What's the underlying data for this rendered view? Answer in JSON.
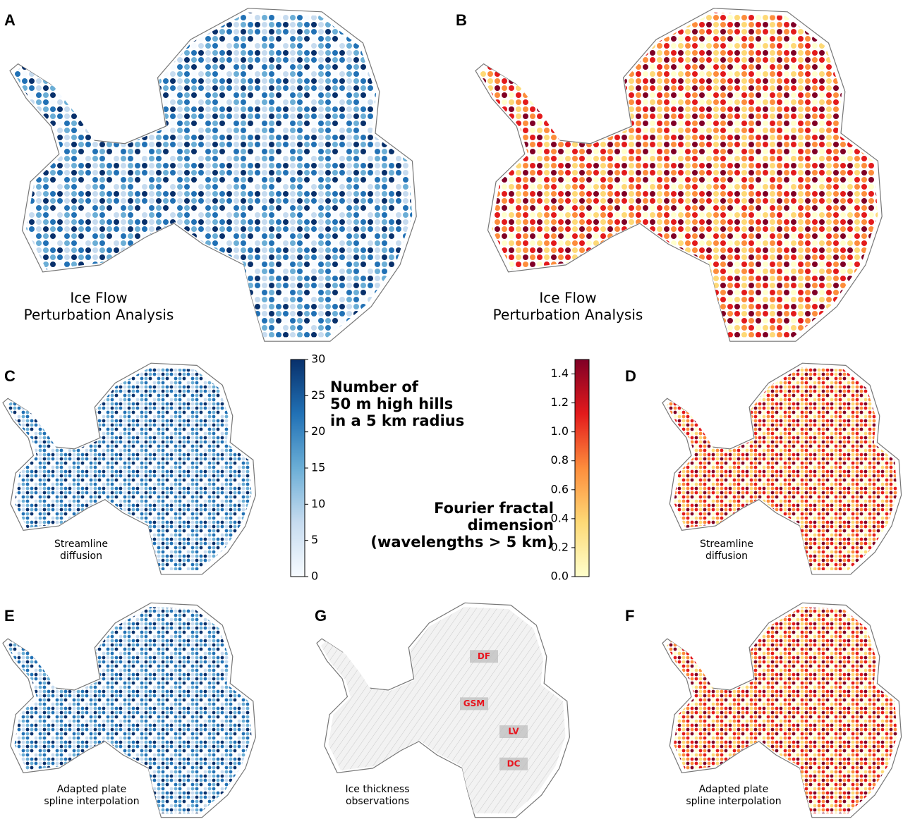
{
  "panels": [
    {
      "letter": "A",
      "caption": [
        "Ice Flow",
        "Perturbation Analysis"
      ]
    },
    {
      "letter": "B",
      "caption": [
        "Ice Flow",
        "Perturbation Analysis"
      ]
    },
    {
      "letter": "C",
      "caption": [
        "Streamline",
        "diffusion"
      ]
    },
    {
      "letter": "D",
      "caption": [
        "Streamline",
        "diffusion"
      ]
    },
    {
      "letter": "E",
      "caption": [
        "Adapted plate",
        "spline interpolation"
      ]
    },
    {
      "letter": "G",
      "caption": [
        "Ice thickness",
        "observations"
      ],
      "sites": [
        "DF",
        "GSM",
        "LV",
        "DC"
      ]
    },
    {
      "letter": "F",
      "caption": [
        "Adapted plate",
        "spline interpolation"
      ]
    }
  ],
  "colorbars": [
    {
      "title": [
        "Number of",
        "50 m high hills",
        "in a 5 km radius"
      ],
      "lim": [
        0,
        30
      ],
      "ticks": [
        0,
        5,
        10,
        15,
        20,
        25,
        30
      ],
      "colors": [
        "#f7fbff",
        "#c6dbef",
        "#6baed6",
        "#2171b5",
        "#08306b"
      ]
    },
    {
      "title": [
        "Fourier fractal",
        "dimension",
        "(wavelengths > 5 km)"
      ],
      "lim": [
        0,
        1.5
      ],
      "ticks": [
        {
          "value": 0,
          "label": "0.0"
        },
        0.2,
        0.4,
        0.6,
        0.8,
        {
          "value": 1,
          "label": "1.0"
        },
        1.2,
        1.4
      ],
      "colors": [
        "#ffffcc",
        "#fed976",
        "#fd8d3c",
        "#e31a1c",
        "#800026"
      ]
    }
  ]
}
